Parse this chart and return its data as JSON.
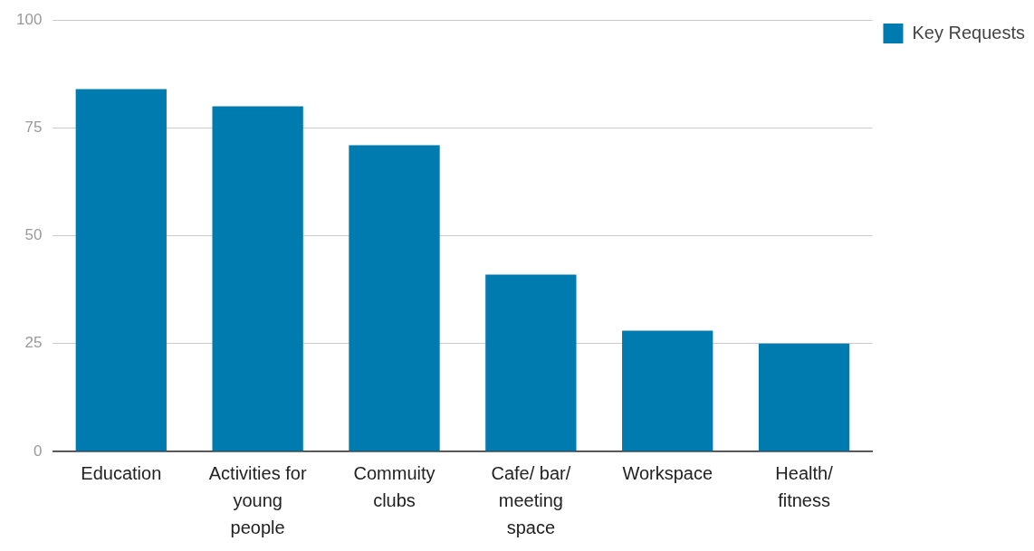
{
  "chart_data": {
    "type": "bar",
    "categories": [
      "Education",
      "Activities for young people",
      "Commuity clubs",
      "Cafe/ bar/ meeting space",
      "Workspace",
      "Health/ fitness"
    ],
    "series": [
      {
        "name": "Key Requests",
        "color": "#007bb0",
        "values": [
          84,
          80,
          71,
          41,
          28,
          25
        ]
      }
    ],
    "ylim": [
      0,
      100
    ],
    "yticks": [
      0,
      25,
      50,
      75,
      100
    ],
    "grid": "y",
    "legend": "top right"
  }
}
